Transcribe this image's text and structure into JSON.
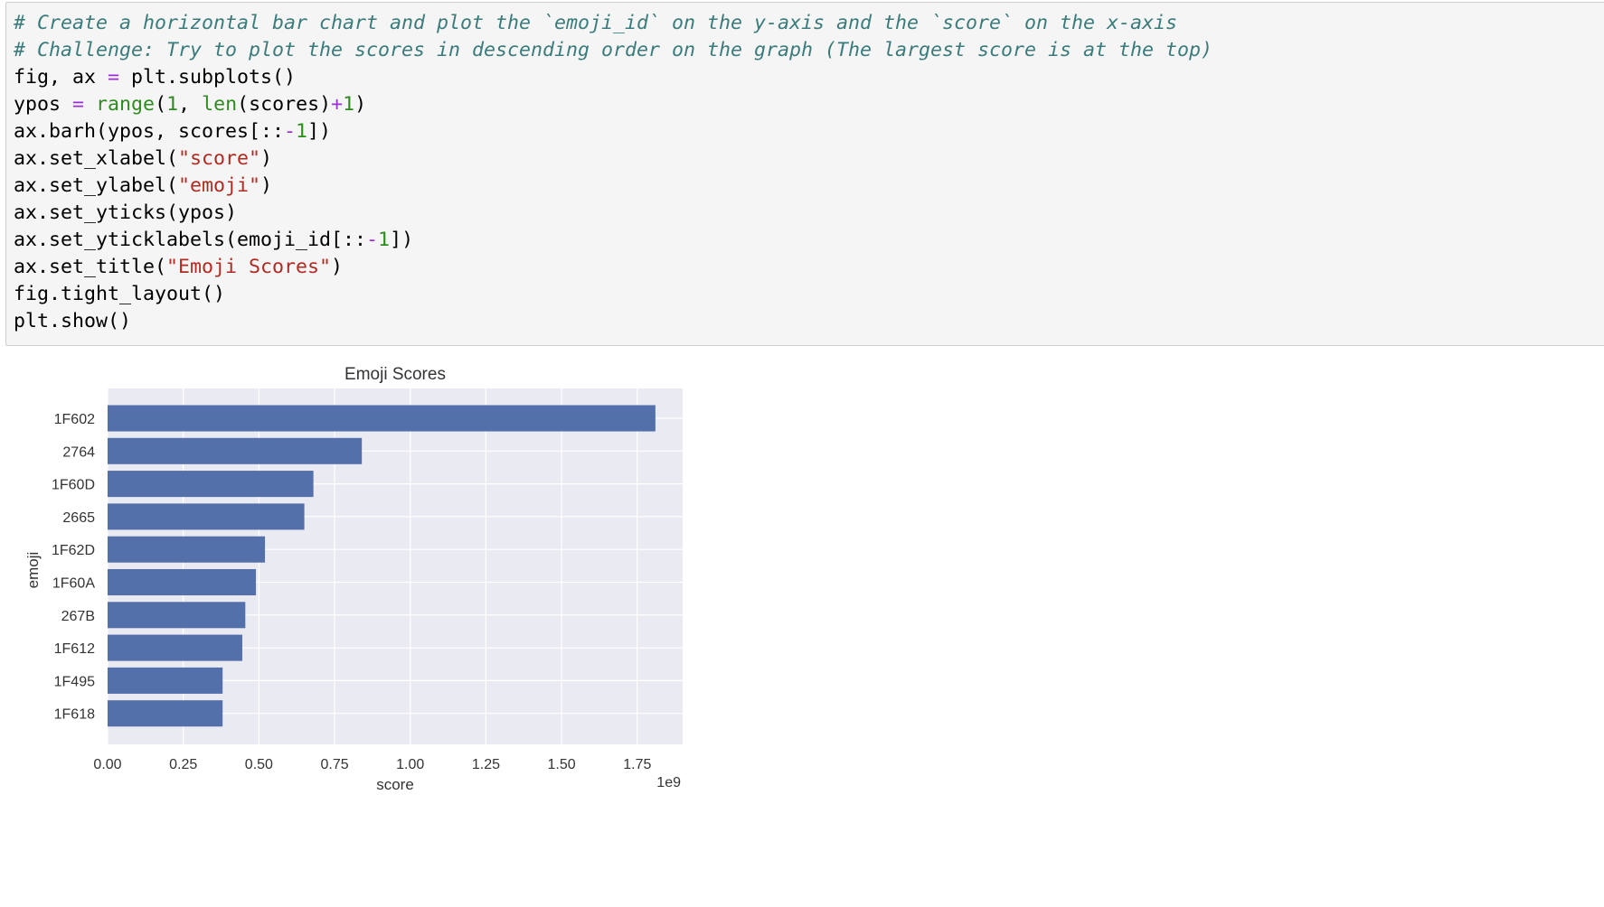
{
  "code_cell": {
    "lines": [
      [
        {
          "t": "# Create a horizontal bar chart and plot the `emoji_id` on the y-axis and the `score` on the x-axis",
          "c": "comment"
        }
      ],
      [
        {
          "t": "# Challenge: Try to plot the scores in descending order on the graph (The largest score is at the top)",
          "c": "comment"
        }
      ],
      [
        {
          "t": "fig, ax ",
          "c": "plain"
        },
        {
          "t": "=",
          "c": "op"
        },
        {
          "t": " plt.subplots()",
          "c": "plain"
        }
      ],
      [
        {
          "t": "ypos ",
          "c": "plain"
        },
        {
          "t": "=",
          "c": "op"
        },
        {
          "t": " ",
          "c": "plain"
        },
        {
          "t": "range",
          "c": "kw"
        },
        {
          "t": "(",
          "c": "plain"
        },
        {
          "t": "1",
          "c": "num"
        },
        {
          "t": ", ",
          "c": "plain"
        },
        {
          "t": "len",
          "c": "kw"
        },
        {
          "t": "(scores)",
          "c": "plain"
        },
        {
          "t": "+",
          "c": "op"
        },
        {
          "t": "1",
          "c": "num"
        },
        {
          "t": ")",
          "c": "plain"
        }
      ],
      [
        {
          "t": "ax.barh(ypos, scores[::",
          "c": "plain"
        },
        {
          "t": "-",
          "c": "op"
        },
        {
          "t": "1",
          "c": "num"
        },
        {
          "t": "])",
          "c": "plain"
        }
      ],
      [
        {
          "t": "ax.set_xlabel(",
          "c": "plain"
        },
        {
          "t": "\"score\"",
          "c": "str"
        },
        {
          "t": ")",
          "c": "plain"
        }
      ],
      [
        {
          "t": "ax.set_ylabel(",
          "c": "plain"
        },
        {
          "t": "\"emoji\"",
          "c": "str"
        },
        {
          "t": ")",
          "c": "plain"
        }
      ],
      [
        {
          "t": "ax.set_yticks(ypos)",
          "c": "plain"
        }
      ],
      [
        {
          "t": "ax.set_yticklabels(emoji_id[::",
          "c": "plain"
        },
        {
          "t": "-",
          "c": "op"
        },
        {
          "t": "1",
          "c": "num"
        },
        {
          "t": "])",
          "c": "plain"
        }
      ],
      [
        {
          "t": "ax.set_title(",
          "c": "plain"
        },
        {
          "t": "\"Emoji Scores\"",
          "c": "str"
        },
        {
          "t": ")",
          "c": "plain"
        }
      ],
      [
        {
          "t": "fig.tight_layout()",
          "c": "plain"
        }
      ],
      [
        {
          "t": "plt.show()",
          "c": "plain"
        }
      ]
    ]
  },
  "chart_data": {
    "type": "bar",
    "orientation": "horizontal",
    "title": "Emoji Scores",
    "xlabel": "score",
    "ylabel": "emoji",
    "x_offset_label": "1e9",
    "categories": [
      "1F602",
      "2764",
      "1F60D",
      "2665",
      "1F62D",
      "1F60A",
      "267B",
      "1F612",
      "1F495",
      "1F618"
    ],
    "values": [
      1.81,
      0.84,
      0.68,
      0.65,
      0.52,
      0.49,
      0.455,
      0.445,
      0.38,
      0.38
    ],
    "value_scale": "1e9",
    "xlim": [
      0,
      1.9
    ],
    "xticks": [
      0.0,
      0.25,
      0.5,
      0.75,
      1.0,
      1.25,
      1.5,
      1.75
    ],
    "xtick_labels": [
      "0.00",
      "0.25",
      "0.50",
      "0.75",
      "1.00",
      "1.25",
      "1.50",
      "1.75"
    ],
    "grid": true,
    "style": "seaborn",
    "colors": {
      "bar": "#5470aa",
      "plot_bg": "#eaeaf2",
      "grid": "#ffffff",
      "text": "#333333"
    }
  }
}
